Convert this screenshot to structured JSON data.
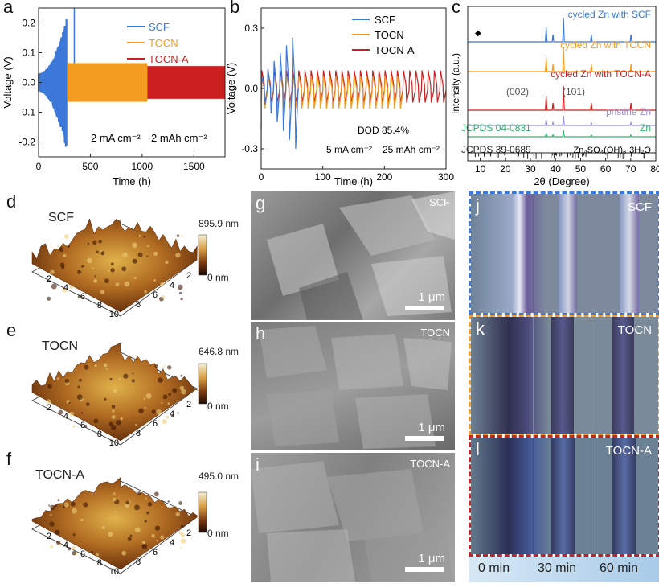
{
  "chart_data": [
    {
      "panel": "a",
      "type": "line",
      "xlabel": "Time (h)",
      "ylabel": "Voltage (V)",
      "xlim": [
        0,
        1800
      ],
      "ylim": [
        -0.25,
        0.25
      ],
      "xticks": [
        "0",
        "500",
        "1000",
        "1500"
      ],
      "yticks": [
        "0.2",
        "0.1",
        "0.0",
        "-0.1",
        "-0.2"
      ],
      "series": [
        {
          "name": "SCF",
          "color": "#3b78d8",
          "x": [
            0,
            100,
            200,
            260,
            280,
            350
          ],
          "y_upper": [
            0.05,
            0.09,
            0.16,
            0.22,
            0.05,
            0.05
          ],
          "y_lower": [
            -0.05,
            -0.08,
            -0.14,
            -0.23,
            -0.06,
            -0.05
          ]
        },
        {
          "name": "TOCN",
          "color": "#f39c1f",
          "x": [
            300,
            500,
            800,
            1050
          ],
          "y_upper": [
            0.06,
            0.06,
            0.06,
            0.06
          ],
          "y_lower": [
            -0.06,
            -0.06,
            -0.06,
            -0.06
          ]
        },
        {
          "name": "TOCN-A",
          "color": "#cc1f1f",
          "x": [
            1050,
            1300,
            1800
          ],
          "y_upper": [
            0.05,
            0.05,
            0.05
          ],
          "y_lower": [
            -0.05,
            -0.05,
            -0.05
          ]
        }
      ],
      "annotations": [
        "2 mA cm⁻²",
        "2 mAh cm⁻²"
      ]
    },
    {
      "panel": "b",
      "type": "line",
      "xlabel": "Time (h)",
      "ylabel": "Voltage (V)",
      "xlim": [
        0,
        300
      ],
      "ylim": [
        -0.4,
        0.4
      ],
      "xticks": [
        "0",
        "100",
        "200",
        "300"
      ],
      "yticks": [
        "0.3",
        "0.0",
        "-0.3"
      ],
      "series": [
        {
          "name": "SCF",
          "color": "#3b78d8",
          "x_end": 57,
          "upper_max": 0.3,
          "lower_min": -0.35
        },
        {
          "name": "TOCN",
          "color": "#f39c1f",
          "x_end": 225,
          "upper": 0.06,
          "lower": -0.1
        },
        {
          "name": "TOCN-A",
          "color": "#cc1f1f",
          "x_end": 300,
          "upper": 0.09,
          "lower": -0.07
        }
      ],
      "annotations": [
        "DOD 85.4%",
        "5 mA cm⁻²",
        "25 mAh cm⁻²"
      ]
    },
    {
      "panel": "c",
      "type": "line",
      "xlabel": "2θ (Degree)",
      "ylabel": "Intensity (a.u.)",
      "xlim": [
        5,
        80
      ],
      "xticks": [
        "10",
        "20",
        "30",
        "40",
        "50",
        "60",
        "70",
        "80"
      ],
      "peaks": [
        36.3,
        39.0,
        43.2,
        54.3,
        70.1
      ],
      "peak_labels": [
        "(002)",
        "(101)"
      ],
      "series": [
        {
          "name": "cycled Zn with SCF",
          "color": "#3b78d8"
        },
        {
          "name": "cycled Zn with TOCN",
          "color": "#f39c1f"
        },
        {
          "name": "cycled Zn with TOCN-A",
          "color": "#cc1f1f"
        },
        {
          "name": "pristine Zn",
          "color": "#9b8fd6"
        },
        {
          "name": "JCPDS 04-0831",
          "color": "#2fb36b"
        },
        {
          "name": "JCPDS 39-0689",
          "color": "#222222"
        }
      ]
    }
  ],
  "panels": {
    "a": "a",
    "b": "b",
    "c": "c",
    "d": "d",
    "e": "e",
    "f": "f",
    "g": "g",
    "h": "h",
    "i": "i",
    "j": "j",
    "k": "k",
    "l": "l"
  },
  "xrd": {
    "zn_label": "Zn",
    "byproduct_label": "Zn₄SO₄(OH)₆·3H₂O",
    "diamond": "◆"
  },
  "afm": [
    {
      "label": "SCF",
      "max": "895.9 nm",
      "min": "0 nm"
    },
    {
      "label": "TOCN",
      "max": "646.8 nm",
      "min": "0 nm"
    },
    {
      "label": "TOCN-A",
      "max": "495.0 nm",
      "min": "0 nm"
    }
  ],
  "afm_axis_ticks": [
    "2",
    "4",
    "6",
    "8",
    "10",
    "2",
    "4",
    "6",
    "8"
  ],
  "sem": [
    {
      "label": "SCF",
      "scale": "1 μm"
    },
    {
      "label": "TOCN",
      "scale": "1 μm"
    },
    {
      "label": "TOCN-A",
      "scale": "1 μm"
    }
  ],
  "optical": [
    {
      "label": "SCF",
      "border": "#3b78d8"
    },
    {
      "label": "TOCN",
      "border": "#f39c1f"
    },
    {
      "label": "TOCN-A",
      "border": "#cc1f1f"
    }
  ],
  "time_bar": [
    "0 min",
    "30 min",
    "60 min"
  ]
}
